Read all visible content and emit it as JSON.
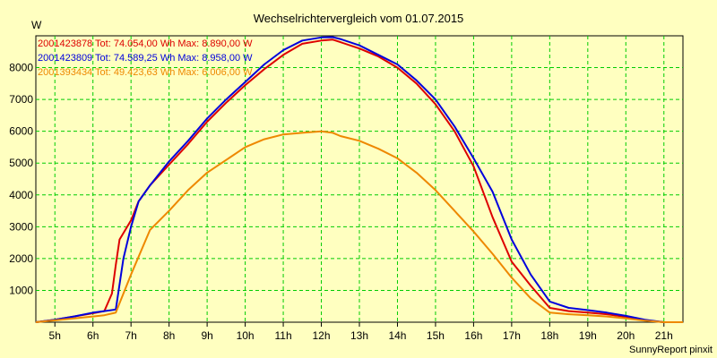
{
  "chart_data": {
    "type": "line",
    "title": "Wechselrichtervergleich vom 01.07.2015",
    "ylabel": "W",
    "xlabel": "",
    "footer": "SunnyReport pinxit",
    "xlim": [
      4.5,
      21.5
    ],
    "ylim": [
      0,
      9000
    ],
    "grid": true,
    "background_color": "#ffffc0",
    "grid_color": "#00cc00",
    "legend_position": "top-left",
    "x_ticks": [
      {
        "value": 5,
        "label": "5h"
      },
      {
        "value": 6,
        "label": "6h"
      },
      {
        "value": 7,
        "label": "7h"
      },
      {
        "value": 8,
        "label": "8h"
      },
      {
        "value": 9,
        "label": "9h"
      },
      {
        "value": 10,
        "label": "10h"
      },
      {
        "value": 11,
        "label": "11h"
      },
      {
        "value": 12,
        "label": "12h"
      },
      {
        "value": 13,
        "label": "13h"
      },
      {
        "value": 14,
        "label": "14h"
      },
      {
        "value": 15,
        "label": "15h"
      },
      {
        "value": 16,
        "label": "16h"
      },
      {
        "value": 17,
        "label": "17h"
      },
      {
        "value": 18,
        "label": "18h"
      },
      {
        "value": 19,
        "label": "19h"
      },
      {
        "value": 20,
        "label": "20h"
      },
      {
        "value": 21,
        "label": "21h"
      }
    ],
    "y_ticks": [
      {
        "value": 1000,
        "label": "1000"
      },
      {
        "value": 2000,
        "label": "2000"
      },
      {
        "value": 3000,
        "label": "3000"
      },
      {
        "value": 4000,
        "label": "4000"
      },
      {
        "value": 5000,
        "label": "5000"
      },
      {
        "value": 6000,
        "label": "6000"
      },
      {
        "value": 7000,
        "label": "7000"
      },
      {
        "value": 8000,
        "label": "8000"
      }
    ],
    "series": [
      {
        "name": "2001423878",
        "legend": "2001423878 Tot: 74.054,00 Wh Max: 8.890,00 W",
        "color": "#dd0000",
        "x": [
          4.5,
          5.0,
          5.5,
          6.0,
          6.3,
          6.5,
          6.6,
          6.7,
          7.0,
          7.2,
          7.5,
          8.0,
          8.5,
          9.0,
          9.5,
          10.0,
          10.5,
          11.0,
          11.5,
          12.0,
          12.3,
          12.5,
          13.0,
          13.5,
          14.0,
          14.5,
          15.0,
          15.5,
          16.0,
          16.5,
          17.0,
          17.5,
          18.0,
          18.5,
          19.0,
          19.5,
          20.0,
          20.5,
          21.0,
          21.5
        ],
        "y": [
          0,
          80,
          180,
          280,
          350,
          900,
          1800,
          2600,
          3200,
          3800,
          4300,
          4950,
          5600,
          6300,
          6900,
          7450,
          7950,
          8400,
          8750,
          8850,
          8880,
          8800,
          8600,
          8350,
          8000,
          7500,
          6850,
          6000,
          4900,
          3300,
          1900,
          1150,
          450,
          350,
          300,
          250,
          170,
          60,
          0,
          0
        ]
      },
      {
        "name": "2001423809",
        "legend": "2001423809 Tot: 74.589,25 Wh Max: 8.958,00 W",
        "color": "#0000dd",
        "x": [
          4.5,
          5.0,
          5.5,
          6.0,
          6.3,
          6.6,
          6.8,
          7.0,
          7.2,
          7.5,
          8.0,
          8.5,
          9.0,
          9.5,
          10.0,
          10.5,
          11.0,
          11.5,
          12.0,
          12.3,
          12.5,
          13.0,
          13.5,
          14.0,
          14.5,
          15.0,
          15.5,
          16.0,
          16.5,
          17.0,
          17.5,
          18.0,
          18.5,
          19.0,
          19.5,
          20.0,
          20.5,
          21.0,
          21.5
        ],
        "y": [
          0,
          80,
          180,
          300,
          350,
          400,
          2000,
          3000,
          3800,
          4300,
          5050,
          5700,
          6400,
          7000,
          7550,
          8100,
          8550,
          8850,
          8950,
          8958,
          8900,
          8700,
          8400,
          8100,
          7600,
          7000,
          6150,
          5150,
          4100,
          2600,
          1500,
          650,
          450,
          380,
          300,
          200,
          80,
          0,
          0
        ]
      },
      {
        "name": "2001393434",
        "legend": "2001393434 Tot: 49.423,63 Wh Max: 6.006,00 W",
        "color": "#ee8800",
        "x": [
          4.5,
          5.0,
          5.5,
          6.0,
          6.3,
          6.6,
          7.0,
          7.5,
          8.0,
          8.5,
          9.0,
          9.5,
          10.0,
          10.5,
          11.0,
          11.5,
          12.0,
          12.3,
          12.5,
          13.0,
          13.5,
          14.0,
          14.5,
          15.0,
          15.5,
          16.0,
          16.5,
          17.0,
          17.5,
          18.0,
          18.5,
          19.0,
          19.5,
          20.0,
          20.5,
          21.0,
          21.5
        ],
        "y": [
          0,
          60,
          120,
          180,
          220,
          300,
          1500,
          2900,
          3500,
          4150,
          4700,
          5100,
          5500,
          5750,
          5900,
          5950,
          6000,
          5950,
          5850,
          5700,
          5450,
          5150,
          4700,
          4150,
          3500,
          2850,
          2150,
          1400,
          750,
          300,
          250,
          220,
          180,
          120,
          50,
          0,
          0
        ]
      }
    ]
  }
}
